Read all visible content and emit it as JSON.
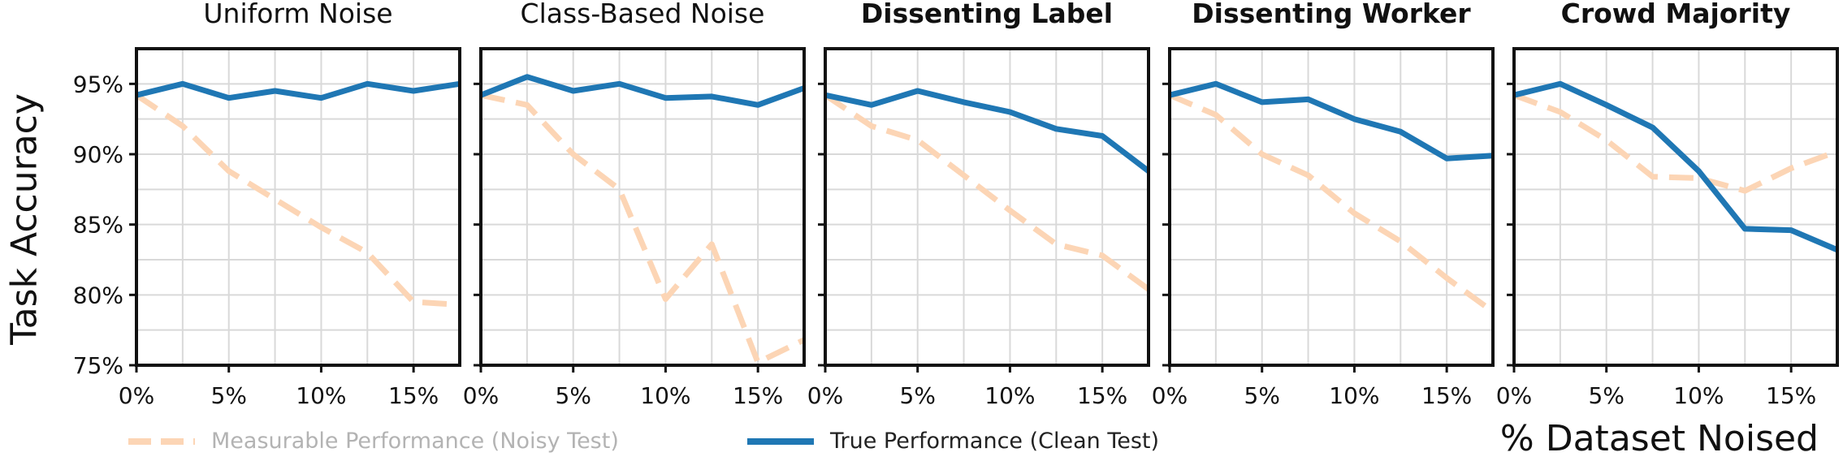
{
  "chart_data": {
    "type": "line",
    "ylabel": "Task Accuracy",
    "xlabel": "% Dataset Noised",
    "ylim": [
      75,
      97.5
    ],
    "xlim": [
      0,
      17.5
    ],
    "yticks": [
      "75%",
      "80%",
      "85%",
      "90%",
      "95%"
    ],
    "xticks": [
      "0%",
      "5%",
      "10%",
      "15%"
    ],
    "x": [
      0,
      2.5,
      5,
      7.5,
      10,
      12.5,
      15,
      17.5
    ],
    "legend": [
      {
        "label": "Measurable Performance (Noisy Test)",
        "color": "#fcd5b5",
        "style": "dashed"
      },
      {
        "label": "True Performance (Clean Test)",
        "color": "#1f77b4",
        "style": "solid"
      }
    ],
    "panels": [
      {
        "title": "Uniform Noise",
        "bold": false,
        "clean": [
          94.2,
          95.0,
          94.0,
          94.5,
          94.0,
          95.0,
          94.5,
          95.0
        ],
        "noisy": [
          94.2,
          92.0,
          88.8,
          86.8,
          84.8,
          83.0,
          79.5,
          79.3
        ]
      },
      {
        "title": "Class-Based Noise",
        "bold": false,
        "clean": [
          94.2,
          95.5,
          94.5,
          95.0,
          94.0,
          94.1,
          93.5,
          94.7
        ],
        "noisy": [
          94.2,
          93.5,
          90.0,
          87.5,
          79.7,
          83.6,
          75.2,
          76.8
        ]
      },
      {
        "title": "Dissenting Label",
        "bold": true,
        "clean": [
          94.2,
          93.5,
          94.5,
          93.7,
          93.0,
          91.8,
          91.3,
          88.8
        ],
        "noisy": [
          94.2,
          92.0,
          91.0,
          88.5,
          86.0,
          83.6,
          82.8,
          80.4
        ]
      },
      {
        "title": "Dissenting Worker",
        "bold": true,
        "clean": [
          94.2,
          95.0,
          93.7,
          93.9,
          92.5,
          91.6,
          89.7,
          89.9
        ],
        "noisy": [
          94.2,
          92.8,
          90.0,
          88.5,
          85.8,
          83.8,
          81.2,
          78.8
        ]
      },
      {
        "title": "Crowd Majority",
        "bold": true,
        "clean": [
          94.2,
          95.0,
          93.5,
          91.9,
          88.8,
          84.7,
          84.6,
          83.2
        ],
        "noisy": [
          94.2,
          93.0,
          91.0,
          88.4,
          88.3,
          87.4,
          89.0,
          90.2
        ]
      }
    ]
  }
}
